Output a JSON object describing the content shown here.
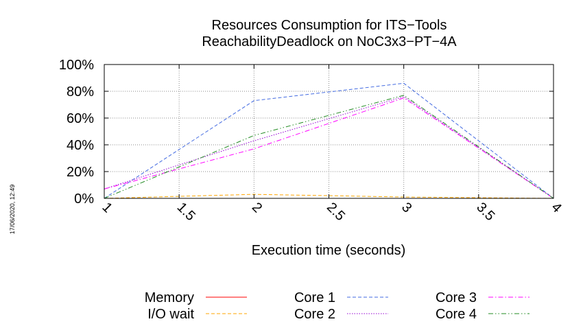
{
  "chart_data": {
    "type": "line",
    "title_lines": [
      "Resources Consumption for ITS−Tools",
      "ReachabilityDeadlock on NoC3x3−PT−4A"
    ],
    "xlabel": "Execution time (seconds)",
    "ylabel": "",
    "xlim": [
      1,
      4
    ],
    "ylim": [
      0,
      100
    ],
    "x_ticks": [
      "1",
      "1.5",
      "2",
      "2.5",
      "3",
      "3.5",
      "4"
    ],
    "y_ticks": [
      "0%",
      "20%",
      "40%",
      "60%",
      "80%",
      "100%"
    ],
    "grid": true,
    "legend_position": "bottom",
    "timestamp": "17/06/2020, 12:49",
    "series": [
      {
        "name": "Memory",
        "color": "#ff0000",
        "dash": "solid",
        "x": [],
        "y": []
      },
      {
        "name": "I/O wait",
        "color": "#ffa500",
        "dash": "dashed",
        "x": [
          1,
          2,
          3,
          4
        ],
        "y": [
          0,
          3,
          1,
          0
        ]
      },
      {
        "name": "Core 1",
        "color": "#4169e1",
        "dash": "dashed",
        "x": [
          1,
          2,
          3,
          4
        ],
        "y": [
          0,
          73,
          86,
          0
        ]
      },
      {
        "name": "Core 2",
        "color": "#9400d3",
        "dash": "dotted",
        "x": [
          1,
          2,
          3,
          4
        ],
        "y": [
          7,
          43,
          76,
          0
        ]
      },
      {
        "name": "Core 3",
        "color": "#ff00ff",
        "dash": "dashdot",
        "x": [
          1,
          2,
          3,
          4
        ],
        "y": [
          7,
          37,
          75,
          0
        ]
      },
      {
        "name": "Core 4",
        "color": "#228b22",
        "dash": "dashdotdot",
        "x": [
          1,
          2,
          3,
          4
        ],
        "y": [
          0,
          47,
          77,
          0
        ]
      }
    ]
  }
}
